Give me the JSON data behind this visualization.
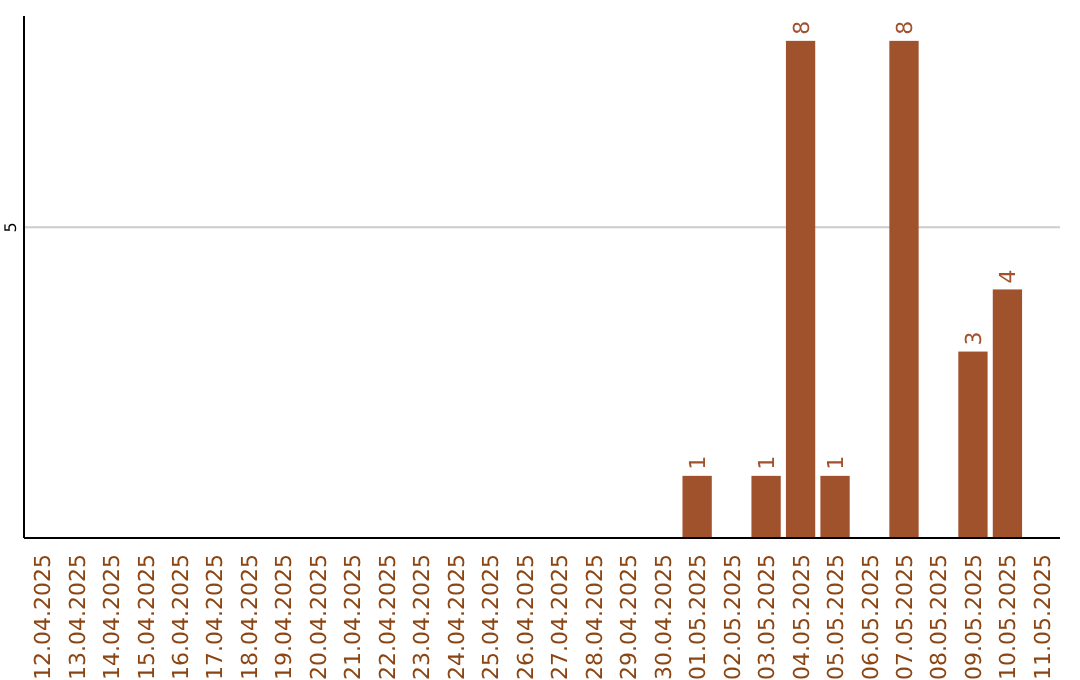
{
  "chart_data": {
    "type": "bar",
    "categories": [
      "12.04.2025",
      "13.04.2025",
      "14.04.2025",
      "15.04.2025",
      "16.04.2025",
      "17.04.2025",
      "18.04.2025",
      "19.04.2025",
      "20.04.2025",
      "21.04.2025",
      "22.04.2025",
      "23.04.2025",
      "24.04.2025",
      "25.04.2025",
      "26.04.2025",
      "27.04.2025",
      "28.04.2025",
      "29.04.2025",
      "30.04.2025",
      "01.05.2025",
      "02.05.2025",
      "03.05.2025",
      "04.05.2025",
      "05.05.2025",
      "06.05.2025",
      "07.05.2025",
      "08.05.2025",
      "09.05.2025",
      "10.05.2025",
      "11.05.2025"
    ],
    "values": [
      null,
      null,
      null,
      null,
      null,
      null,
      null,
      null,
      null,
      null,
      null,
      null,
      null,
      null,
      null,
      null,
      null,
      null,
      null,
      1,
      null,
      1,
      8,
      1,
      null,
      8,
      null,
      3,
      4,
      null
    ],
    "color": "#a0522d",
    "ylim": [
      0,
      8.4
    ],
    "yticks": [
      5
    ],
    "grid": "y",
    "data_labels": true
  }
}
